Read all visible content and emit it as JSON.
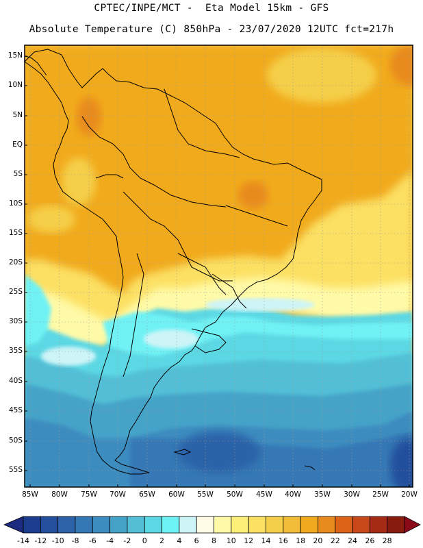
{
  "header": {
    "line1": "CPTEC/INPE/MCT -  Eta Model 15km - GFS",
    "line2": "Absolute Temperature (C) 850hPa - 23/07/2020 12UTC fct=217h"
  },
  "map": {
    "lat_labels": [
      "15N",
      "10N",
      "5N",
      "EQ",
      "5S",
      "10S",
      "15S",
      "20S",
      "25S",
      "30S",
      "35S",
      "40S",
      "45S",
      "50S",
      "55S"
    ],
    "lon_labels": [
      "85W",
      "80W",
      "75W",
      "70W",
      "65W",
      "60W",
      "55W",
      "50W",
      "45W",
      "40W",
      "35W",
      "30W",
      "25W",
      "20W"
    ]
  },
  "colorbar": {
    "labels": [
      "-14",
      "-12",
      "-10",
      "-8",
      "-6",
      "-4",
      "-2",
      "0",
      "2",
      "4",
      "6",
      "8",
      "10",
      "12",
      "14",
      "16",
      "18",
      "20",
      "22",
      "24",
      "26",
      "28"
    ],
    "colors": [
      "#1c3d8f",
      "#234f9c",
      "#2b62a8",
      "#3478b5",
      "#3c8cbf",
      "#45a3c8",
      "#52bfd6",
      "#5bd8e4",
      "#6ff2f5",
      "#cdf4f7",
      "#fffbe6",
      "#fffaa8",
      "#fdf07a",
      "#fce064",
      "#f5cf4a",
      "#f3bd3a",
      "#f1aa1e",
      "#e88a1e",
      "#dd6319",
      "#c8481a",
      "#a52b15",
      "#871b0e"
    ],
    "under_color": "#1c2a80",
    "over_color": "#8a0a1a"
  }
}
